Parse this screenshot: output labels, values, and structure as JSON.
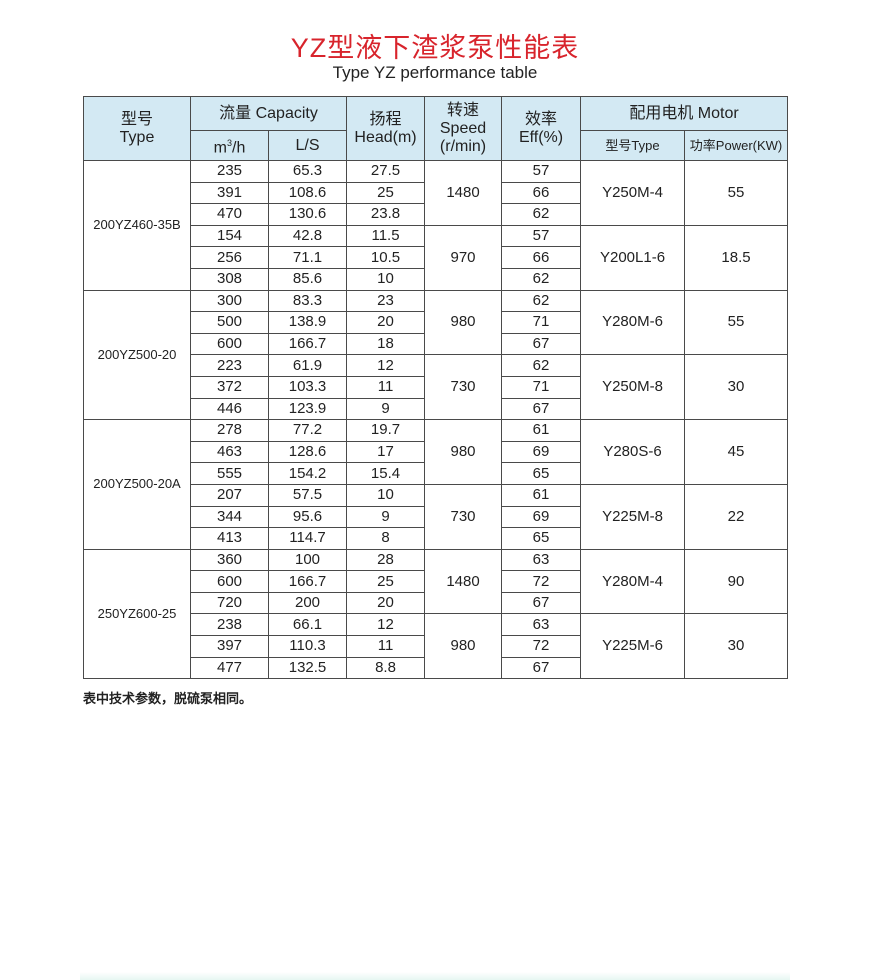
{
  "title": "YZ型液下渣浆泵性能表",
  "subtitle": "Type YZ performance table",
  "header": {
    "type_cn": "型号",
    "type_en": "Type",
    "capacity": "流量 Capacity",
    "m3h_base": "m",
    "m3h_sup": "3",
    "m3h_tail": "/h",
    "ls": "L/S",
    "head_cn": "扬程",
    "head_en": "Head(m)",
    "speed_cn": "转速",
    "speed_en": "Speed",
    "speed_unit": "(r/min)",
    "eff_cn": "效率",
    "eff_en": "Eff(%)",
    "motor": "配用电机 Motor",
    "motor_type": "型号Type",
    "motor_power": "功率Power(KW)"
  },
  "models": [
    {
      "name": "200YZ460-35B",
      "groups": [
        {
          "speed": "1480",
          "motor": "Y250M-4",
          "power": "55",
          "rows": [
            [
              "235",
              "65.3",
              "27.5",
              "57"
            ],
            [
              "391",
              "108.6",
              "25",
              "66"
            ],
            [
              "470",
              "130.6",
              "23.8",
              "62"
            ]
          ]
        },
        {
          "speed": "970",
          "motor": "Y200L1-6",
          "power": "18.5",
          "rows": [
            [
              "154",
              "42.8",
              "11.5",
              "57"
            ],
            [
              "256",
              "71.1",
              "10.5",
              "66"
            ],
            [
              "308",
              "85.6",
              "10",
              "62"
            ]
          ]
        }
      ]
    },
    {
      "name": "200YZ500-20",
      "groups": [
        {
          "speed": "980",
          "motor": "Y280M-6",
          "power": "55",
          "rows": [
            [
              "300",
              "83.3",
              "23",
              "62"
            ],
            [
              "500",
              "138.9",
              "20",
              "71"
            ],
            [
              "600",
              "166.7",
              "18",
              "67"
            ]
          ]
        },
        {
          "speed": "730",
          "motor": "Y250M-8",
          "power": "30",
          "rows": [
            [
              "223",
              "61.9",
              "12",
              "62"
            ],
            [
              "372",
              "103.3",
              "11",
              "71"
            ],
            [
              "446",
              "123.9",
              "9",
              "67"
            ]
          ]
        }
      ]
    },
    {
      "name": "200YZ500-20A",
      "groups": [
        {
          "speed": "980",
          "motor": "Y280S-6",
          "power": "45",
          "rows": [
            [
              "278",
              "77.2",
              "19.7",
              "61"
            ],
            [
              "463",
              "128.6",
              "17",
              "69"
            ],
            [
              "555",
              "154.2",
              "15.4",
              "65"
            ]
          ]
        },
        {
          "speed": "730",
          "motor": "Y225M-8",
          "power": "22",
          "rows": [
            [
              "207",
              "57.5",
              "10",
              "61"
            ],
            [
              "344",
              "95.6",
              "9",
              "69"
            ],
            [
              "413",
              "114.7",
              "8",
              "65"
            ]
          ]
        }
      ]
    },
    {
      "name": "250YZ600-25",
      "groups": [
        {
          "speed": "1480",
          "motor": "Y280M-4",
          "power": "90",
          "rows": [
            [
              "360",
              "100",
              "28",
              "63"
            ],
            [
              "600",
              "166.7",
              "25",
              "72"
            ],
            [
              "720",
              "200",
              "20",
              "67"
            ]
          ]
        },
        {
          "speed": "980",
          "motor": "Y225M-6",
          "power": "30",
          "rows": [
            [
              "238",
              "66.1",
              "12",
              "63"
            ],
            [
              "397",
              "110.3",
              "11",
              "72"
            ],
            [
              "477",
              "132.5",
              "8.8",
              "67"
            ]
          ]
        }
      ]
    }
  ],
  "note": "表中技术参数，脱硫泵相同。",
  "colors": {
    "title": "#d8242c",
    "header_bg": "#d3e9f3"
  }
}
